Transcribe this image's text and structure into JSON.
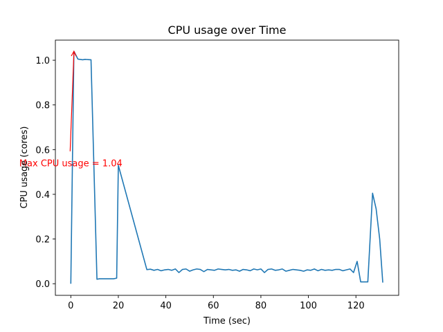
{
  "chart_data": {
    "type": "line",
    "title": "CPU usage over Time",
    "xlabel": "Time (sec)",
    "ylabel": "CPU usage (cores)",
    "xlim": [
      -6.5,
      138
    ],
    "ylim": [
      -0.052,
      1.09
    ],
    "xticks": [
      0,
      20,
      40,
      60,
      80,
      100,
      120
    ],
    "yticks": [
      0.0,
      0.2,
      0.4,
      0.6,
      0.8,
      1.0
    ],
    "xtick_labels": [
      "0",
      "20",
      "40",
      "60",
      "80",
      "100",
      "120"
    ],
    "ytick_labels": [
      "0.0",
      "0.2",
      "0.4",
      "0.6",
      "0.8",
      "1.0"
    ],
    "grid": false,
    "line_color": "#1f77b4",
    "series": [
      {
        "x": [
          0,
          1.3,
          3,
          5,
          6,
          7,
          8.5,
          11,
          12,
          14,
          16,
          18,
          19.3,
          20,
          32,
          33.5,
          35,
          36.5,
          38,
          39.5,
          41,
          42.5,
          44,
          45.5,
          47,
          48.5,
          50,
          51.5,
          53,
          54.5,
          56,
          57.5,
          59,
          60.5,
          62,
          63.5,
          65,
          66.5,
          68,
          69.5,
          71,
          72.5,
          74,
          75.5,
          77,
          78.5,
          80,
          81.5,
          83,
          84.5,
          86,
          87.5,
          89,
          90.5,
          92,
          93.5,
          95,
          96.5,
          98,
          99.5,
          101,
          102.5,
          104,
          105.5,
          107,
          108.5,
          110,
          111.5,
          113,
          114.5,
          116,
          117.5,
          119,
          120.5,
          122,
          123.5,
          125,
          127,
          128.5,
          130,
          131.3
        ],
        "y": [
          0.0,
          1.04,
          1.005,
          1.002,
          1.004,
          1.003,
          1.002,
          0.02,
          0.022,
          0.022,
          0.022,
          0.022,
          0.025,
          0.53,
          0.063,
          0.065,
          0.06,
          0.064,
          0.058,
          0.062,
          0.064,
          0.06,
          0.066,
          0.05,
          0.064,
          0.066,
          0.056,
          0.062,
          0.066,
          0.064,
          0.054,
          0.064,
          0.062,
          0.06,
          0.066,
          0.064,
          0.062,
          0.064,
          0.06,
          0.062,
          0.056,
          0.064,
          0.062,
          0.058,
          0.066,
          0.062,
          0.066,
          0.05,
          0.064,
          0.066,
          0.06,
          0.062,
          0.066,
          0.056,
          0.06,
          0.064,
          0.062,
          0.06,
          0.056,
          0.062,
          0.06,
          0.066,
          0.058,
          0.064,
          0.06,
          0.062,
          0.06,
          0.064,
          0.064,
          0.058,
          0.062,
          0.066,
          0.05,
          0.1,
          0.008,
          0.008,
          0.008,
          0.405,
          0.335,
          0.2,
          0.005
        ]
      }
    ],
    "annotation": {
      "text": "Max CPU usage = 1.04",
      "color": "#ff0000",
      "point": [
        1.3,
        1.04
      ],
      "text_pos": [
        0,
        0.54
      ]
    }
  }
}
